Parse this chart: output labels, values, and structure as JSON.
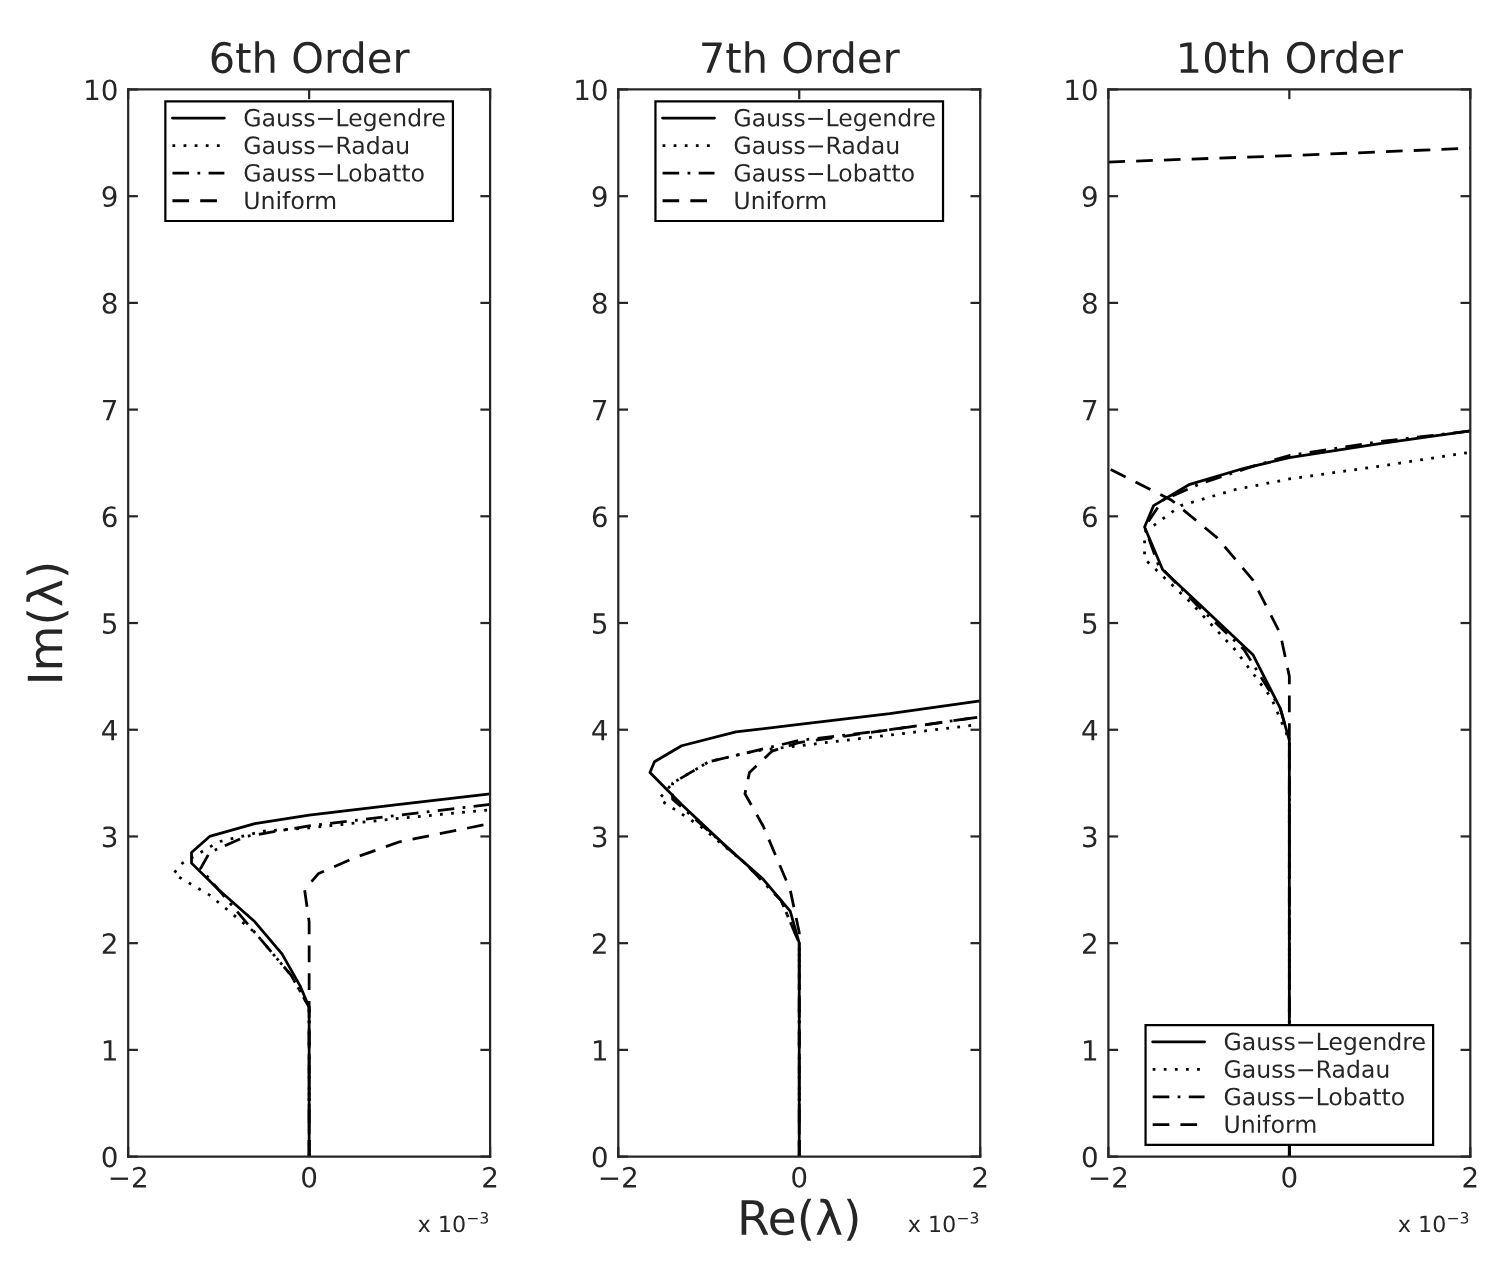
{
  "chart_data": [
    {
      "type": "line",
      "title": "6th Order",
      "ylabel": "Im(λ)",
      "xlim": [
        -2,
        2
      ],
      "ylim": [
        0,
        10
      ],
      "xticks": [
        -2,
        0,
        2
      ],
      "yticks": [
        0,
        1,
        2,
        3,
        4,
        5,
        6,
        7,
        8,
        9,
        10
      ],
      "grid": false,
      "legend": "top",
      "annotations": [
        "x 10$^{−3}$"
      ],
      "series": [
        {
          "name": "Gauss−Legendre",
          "color": "#000000",
          "line_style": "solid",
          "x": [
            0,
            0,
            -0.1,
            -0.3,
            -0.6,
            -1.0,
            -1.3,
            -1.3,
            -1.1,
            -0.6,
            0,
            1.0,
            2.0
          ],
          "values": [
            0,
            1.4,
            1.6,
            1.9,
            2.2,
            2.5,
            2.75,
            2.85,
            3.0,
            3.12,
            3.2,
            3.3,
            3.4
          ]
        },
        {
          "name": "Gauss−Radau",
          "color": "#000000",
          "line_style": "dotted",
          "x": [
            0,
            0,
            -0.2,
            -0.6,
            -1.1,
            -1.5,
            -1.4,
            -1.0,
            -0.5,
            0,
            1.0,
            2.0
          ],
          "values": [
            0,
            1.4,
            1.7,
            2.1,
            2.45,
            2.65,
            2.75,
            2.95,
            3.05,
            3.08,
            3.17,
            3.25
          ]
        },
        {
          "name": "Gauss−Lobatto",
          "color": "#000000",
          "line_style": "dashdot",
          "x": [
            0,
            0,
            -0.2,
            -0.6,
            -1.0,
            -1.2,
            -1.1,
            -0.7,
            0,
            1.0,
            2.0
          ],
          "values": [
            0,
            1.4,
            1.7,
            2.1,
            2.5,
            2.7,
            2.85,
            3.0,
            3.1,
            3.2,
            3.3
          ]
        },
        {
          "name": "Uniform",
          "color": "#000000",
          "line_style": "dashed",
          "x": [
            0,
            0,
            -0.05,
            0.1,
            0.5,
            1.0,
            2.0
          ],
          "values": [
            0,
            2.2,
            2.5,
            2.65,
            2.8,
            2.95,
            3.12
          ]
        }
      ]
    },
    {
      "type": "line",
      "title": "7th Order",
      "xlabel": "Re(λ)",
      "xlim": [
        -2,
        2
      ],
      "ylim": [
        0,
        10
      ],
      "xticks": [
        -2,
        0,
        2
      ],
      "yticks": [
        0,
        1,
        2,
        3,
        4,
        5,
        6,
        7,
        8,
        9,
        10
      ],
      "grid": false,
      "legend": "top",
      "annotations": [
        "x 10$^{−3}$"
      ],
      "series": [
        {
          "name": "Gauss−Legendre",
          "color": "#000000",
          "line_style": "solid",
          "x": [
            0,
            0,
            -0.1,
            -0.4,
            -0.8,
            -1.3,
            -1.65,
            -1.6,
            -1.3,
            -0.7,
            0,
            1.0,
            2.0
          ],
          "values": [
            0,
            2.0,
            2.3,
            2.6,
            2.9,
            3.3,
            3.6,
            3.7,
            3.85,
            3.98,
            4.05,
            4.15,
            4.27
          ]
        },
        {
          "name": "Gauss−Radau",
          "color": "#000000",
          "line_style": "dotted",
          "x": [
            0,
            0,
            -0.2,
            -0.6,
            -1.1,
            -1.55,
            -1.4,
            -1.0,
            -0.5,
            0,
            1.0,
            2.0
          ],
          "values": [
            0,
            2.0,
            2.4,
            2.75,
            3.1,
            3.35,
            3.5,
            3.7,
            3.8,
            3.85,
            3.95,
            4.05
          ]
        },
        {
          "name": "Gauss−Lobatto",
          "color": "#000000",
          "line_style": "dashdot",
          "x": [
            0,
            0,
            -0.2,
            -0.6,
            -1.0,
            -1.4,
            -1.4,
            -1.0,
            -0.5,
            0,
            1.0,
            2.0
          ],
          "values": [
            0,
            2.0,
            2.4,
            2.75,
            3.05,
            3.35,
            3.5,
            3.7,
            3.8,
            3.9,
            4.0,
            4.12
          ]
        },
        {
          "name": "Uniform",
          "color": "#000000",
          "line_style": "dashed",
          "x": [
            0,
            0,
            -0.1,
            -0.4,
            -0.6,
            -0.55,
            -0.3,
            0,
            1.0,
            2.0
          ],
          "values": [
            0,
            2.1,
            2.5,
            3.1,
            3.4,
            3.6,
            3.8,
            3.88,
            4.0,
            4.12
          ]
        }
      ]
    },
    {
      "type": "line",
      "title": "10th Order",
      "xlim": [
        -2,
        2
      ],
      "ylim": [
        0,
        10
      ],
      "xticks": [
        -2,
        0,
        2
      ],
      "yticks": [
        0,
        1,
        2,
        3,
        4,
        5,
        6,
        7,
        8,
        9,
        10
      ],
      "grid": false,
      "legend": "bottom",
      "annotations": [
        "x 10$^{−3}$"
      ],
      "series": [
        {
          "name": "Gauss−Legendre",
          "color": "#000000",
          "line_style": "solid",
          "x": [
            0,
            0,
            -0.1,
            -0.4,
            -0.9,
            -1.4,
            -1.6,
            -1.5,
            -1.1,
            -0.5,
            0,
            1.0,
            2.0
          ],
          "values": [
            0,
            3.9,
            4.2,
            4.7,
            5.1,
            5.5,
            5.9,
            6.1,
            6.3,
            6.45,
            6.55,
            6.68,
            6.8
          ]
        },
        {
          "name": "Gauss−Radau",
          "color": "#000000",
          "line_style": "dotted",
          "x": [
            0,
            0,
            -0.2,
            -0.6,
            -1.1,
            -1.6,
            -1.6,
            -1.2,
            -0.6,
            0,
            1.0,
            2.0
          ],
          "values": [
            0,
            3.9,
            4.3,
            4.75,
            5.2,
            5.6,
            5.85,
            6.1,
            6.25,
            6.35,
            6.47,
            6.6
          ]
        },
        {
          "name": "Gauss−Lobatto",
          "color": "#000000",
          "line_style": "dashdot",
          "x": [
            0,
            0,
            -0.1,
            -0.5,
            -1.0,
            -1.45,
            -1.6,
            -1.4,
            -1.0,
            -0.4,
            0,
            1.0,
            2.0
          ],
          "values": [
            0,
            3.9,
            4.2,
            4.75,
            5.15,
            5.55,
            5.9,
            6.15,
            6.3,
            6.47,
            6.57,
            6.7,
            6.8
          ]
        },
        {
          "name": "Uniform",
          "color": "#000000",
          "line_style": "dashed",
          "x": [
            0,
            0,
            -0.1,
            -0.4,
            -0.8,
            -1.3,
            -2.0,
            null,
            -2.0,
            0,
            2.0
          ],
          "values": [
            0,
            4.5,
            4.9,
            5.4,
            5.8,
            6.15,
            6.45,
            null,
            9.32,
            9.38,
            9.45
          ]
        }
      ]
    }
  ]
}
